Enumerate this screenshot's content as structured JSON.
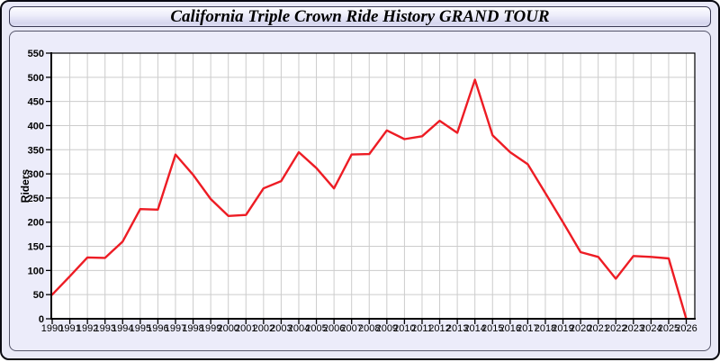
{
  "window": {
    "title": "California Triple Crown Ride History GRAND TOUR"
  },
  "colors": {
    "line": "#ED1C24",
    "plot_background": "#FFFFFF",
    "panel_background": "#ECECFA",
    "grid": "#CCCCCC",
    "axis": "#000000",
    "text": "#000000"
  },
  "chart_data": {
    "type": "line",
    "title": "California Triple Crown Ride History GRAND TOUR",
    "xlabel": "",
    "ylabel": "Riders",
    "series_name": "Riders",
    "x": [
      1990,
      1991,
      1992,
      1993,
      1994,
      1995,
      1996,
      1997,
      1998,
      1999,
      2000,
      2001,
      2002,
      2003,
      2004,
      2005,
      2006,
      2007,
      2008,
      2009,
      2010,
      2011,
      2012,
      2013,
      2014,
      2015,
      2016,
      2017,
      2018,
      2019,
      2020,
      2021,
      2022,
      2023,
      2024,
      2025,
      2026
    ],
    "values": [
      50,
      88,
      127,
      126,
      160,
      227,
      226,
      340,
      298,
      248,
      213,
      215,
      270,
      285,
      345,
      312,
      270,
      340,
      341,
      390,
      372,
      378,
      410,
      385,
      495,
      380,
      345,
      320,
      260,
      200,
      138,
      128,
      83,
      130,
      128,
      125,
      0
    ],
    "ylim": [
      0,
      550
    ],
    "yticks": [
      0,
      50,
      100,
      150,
      200,
      250,
      300,
      350,
      400,
      450,
      500,
      550
    ],
    "grid": true,
    "legend": "none"
  }
}
